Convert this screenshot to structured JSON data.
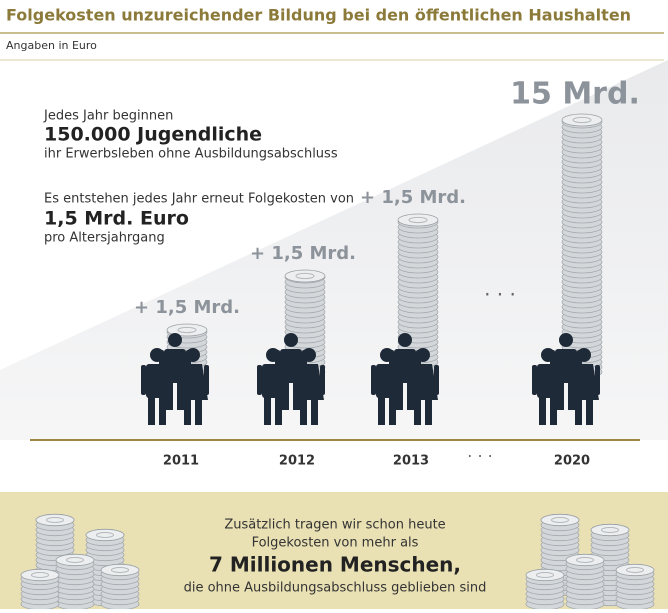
{
  "header": {
    "title": "Folgekosten unzureichender Bildung bei den öffentlichen Haushalten",
    "subtitle": "Angaben in Euro"
  },
  "intro": {
    "line1": "Jedes Jahr beginnen",
    "highlight1": "150.000 Jugendliche",
    "line2": "ihr Erwerbsleben ohne Ausbildungsabschluss",
    "line3": "Es entstehen jedes Jahr erneut Folgekosten von",
    "highlight2": "1,5 Mrd. Euro",
    "line4": "pro Altersjahrgang"
  },
  "columns": [
    {
      "year": "2011",
      "label": "+ 1,5 Mrd."
    },
    {
      "year": "2012",
      "label": "+ 1,5 Mrd."
    },
    {
      "year": "2013",
      "label": "+ 1,5 Mrd."
    },
    {
      "year": "2020",
      "label": "15 Mrd."
    }
  ],
  "ellipsis": "· · ·",
  "footer": {
    "line1": "Zusätzlich tragen wir schon heute",
    "line2": "Folgekosten von mehr als",
    "highlight": "7 Millionen Menschen,",
    "line3": "die ohne Ausbildungsabschluss geblieben sind"
  }
}
